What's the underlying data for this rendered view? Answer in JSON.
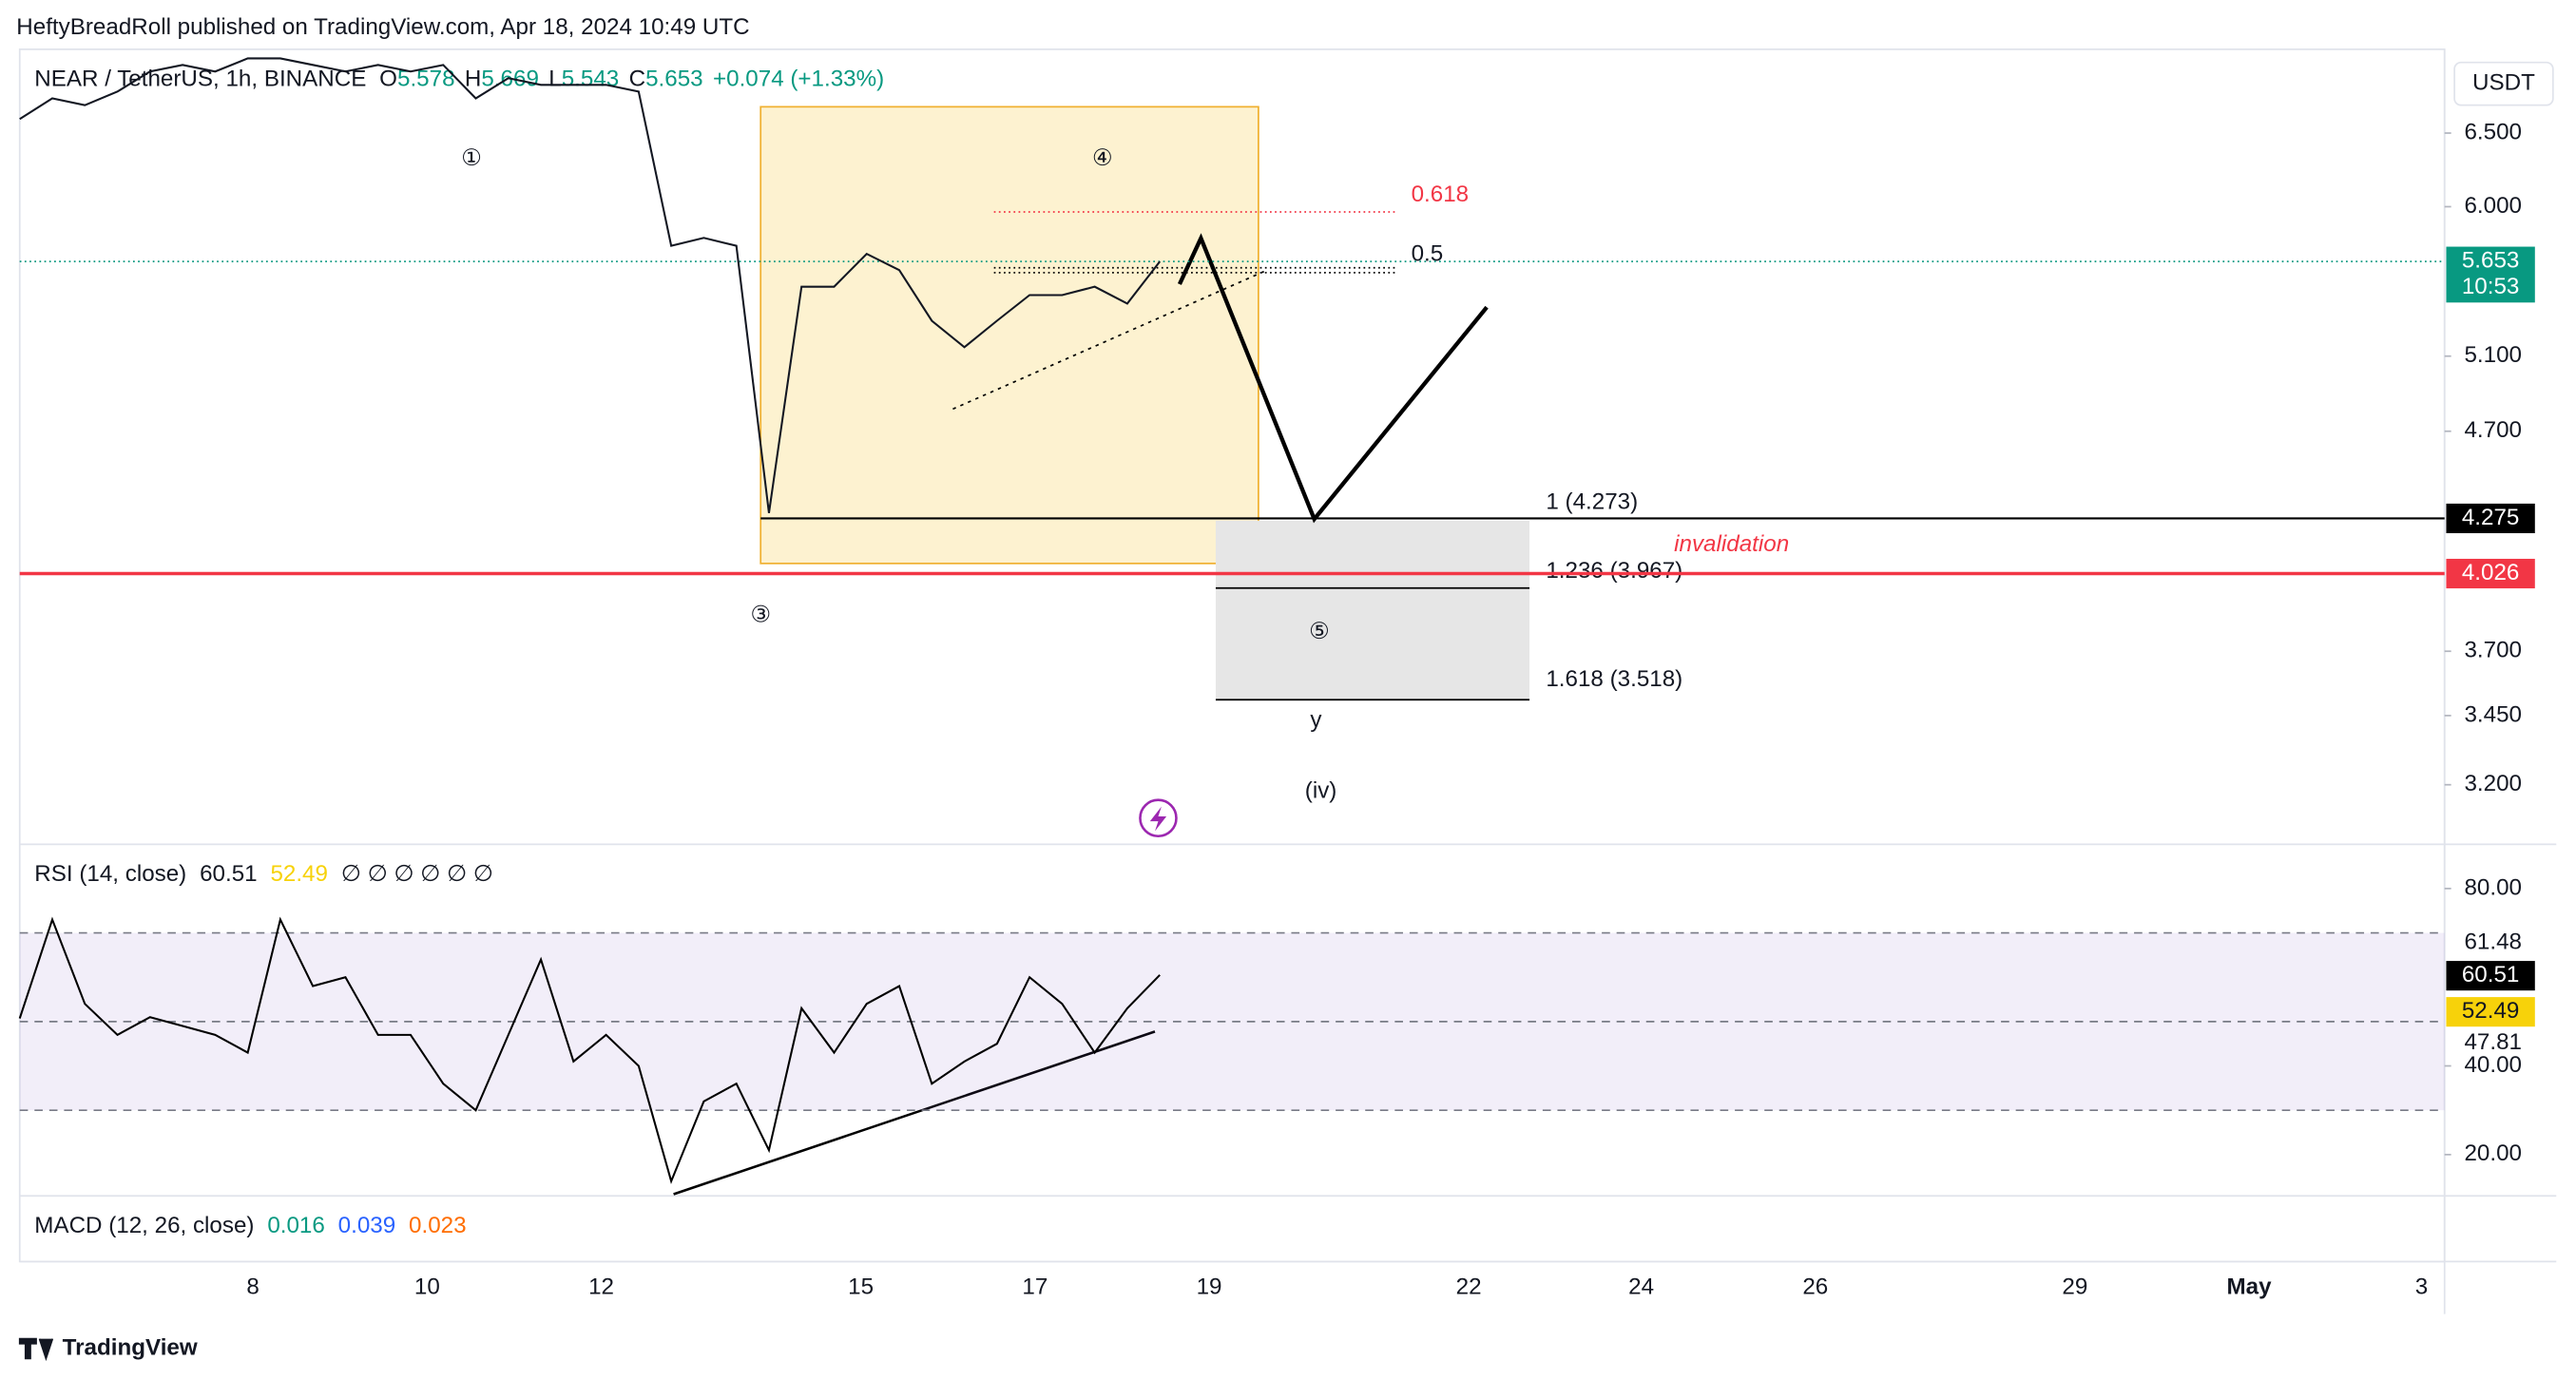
{
  "header": {
    "published": "HeftyBreadRoll published on TradingView.com, Apr 18, 2024 10:49 UTC"
  },
  "legend": {
    "symbol": "NEAR / TetherUS, 1h, BINANCE",
    "o_label": "O",
    "o": "5.578",
    "h_label": "H",
    "h": "5.669",
    "l_label": "L",
    "l": "5.543",
    "c_label": "C",
    "c": "5.653",
    "change": "+0.074 (+1.33%)"
  },
  "chart_data": {
    "type": "line",
    "log_scale": true,
    "color": "#131722",
    "currency": "USDT",
    "values": [
      6.6,
      6.75,
      6.7,
      6.8,
      6.95,
      7.0,
      6.95,
      7.05,
      7.05,
      7.0,
      6.95,
      7.0,
      6.95,
      7.0,
      6.75,
      6.9,
      6.85,
      6.85,
      6.85,
      6.8,
      5.75,
      5.8,
      5.75,
      4.3,
      5.5,
      5.5,
      5.7,
      5.6,
      5.3,
      5.15,
      5.3,
      5.45,
      5.45,
      5.5,
      5.4,
      5.653
    ],
    "ylim": [
      3.01,
      7.12
    ],
    "yticks": [
      {
        "value": 6.5,
        "label": "6.500"
      },
      {
        "value": 6.0,
        "label": "6.000"
      },
      {
        "value": 5.1,
        "label": "5.100"
      },
      {
        "value": 4.7,
        "label": "4.700"
      },
      {
        "value": 3.7,
        "label": "3.700"
      },
      {
        "value": 3.45,
        "label": "3.450"
      },
      {
        "value": 3.2,
        "label": "3.200"
      }
    ],
    "last_price": {
      "value": 5.653,
      "label": "5.653",
      "countdown": "10:53",
      "color": "#089981"
    },
    "levels": [
      {
        "value": 4.275,
        "label": "4.275",
        "color": "#000000"
      },
      {
        "value": 4.026,
        "label": "4.026",
        "color": "#f23645"
      }
    ],
    "time_labels": [
      "8",
      "10",
      "12",
      "15",
      "17",
      "19",
      "22",
      "24",
      "26",
      "29",
      "May",
      "3"
    ]
  },
  "annotations": {
    "wave1": "①",
    "wave3": "③",
    "wave4": "④",
    "wave5": "⑤",
    "y": "y",
    "iv": "(iv)",
    "fib618": "0.618",
    "fib05": "0.5",
    "fib1": "1 (4.273)",
    "fib1236": "1.236 (3.967)",
    "fib1618": "1.618 (3.518)",
    "invalidation": "invalidation"
  },
  "rsi": {
    "title": "RSI (14, close)",
    "value": "60.51",
    "ma": "52.49",
    "nulls": "∅ ∅ ∅ ∅ ∅ ∅",
    "values": [
      50.7,
      73,
      54,
      47,
      51,
      49,
      47,
      43,
      73,
      58,
      60,
      47,
      47,
      36,
      30,
      47,
      64,
      41,
      47,
      40,
      14,
      32,
      36,
      21,
      53,
      43,
      54,
      58,
      36,
      41,
      45,
      60,
      54,
      43,
      53,
      60.51
    ],
    "color": "#000000",
    "ylim": [
      10.7,
      89.6
    ],
    "yticks": [
      {
        "value": 80,
        "label": "80.00"
      },
      {
        "value": 40,
        "label": "40.00"
      },
      {
        "value": 20,
        "label": "20.00"
      }
    ],
    "bands": [
      70,
      50,
      30
    ],
    "extra_labels": [
      "61.48",
      "47.81"
    ]
  },
  "macd": {
    "title": "MACD (12, 26, close)",
    "v1": "0.016",
    "v2": "0.039",
    "v3": "0.023"
  },
  "footer": {
    "brand": "TradingView"
  }
}
